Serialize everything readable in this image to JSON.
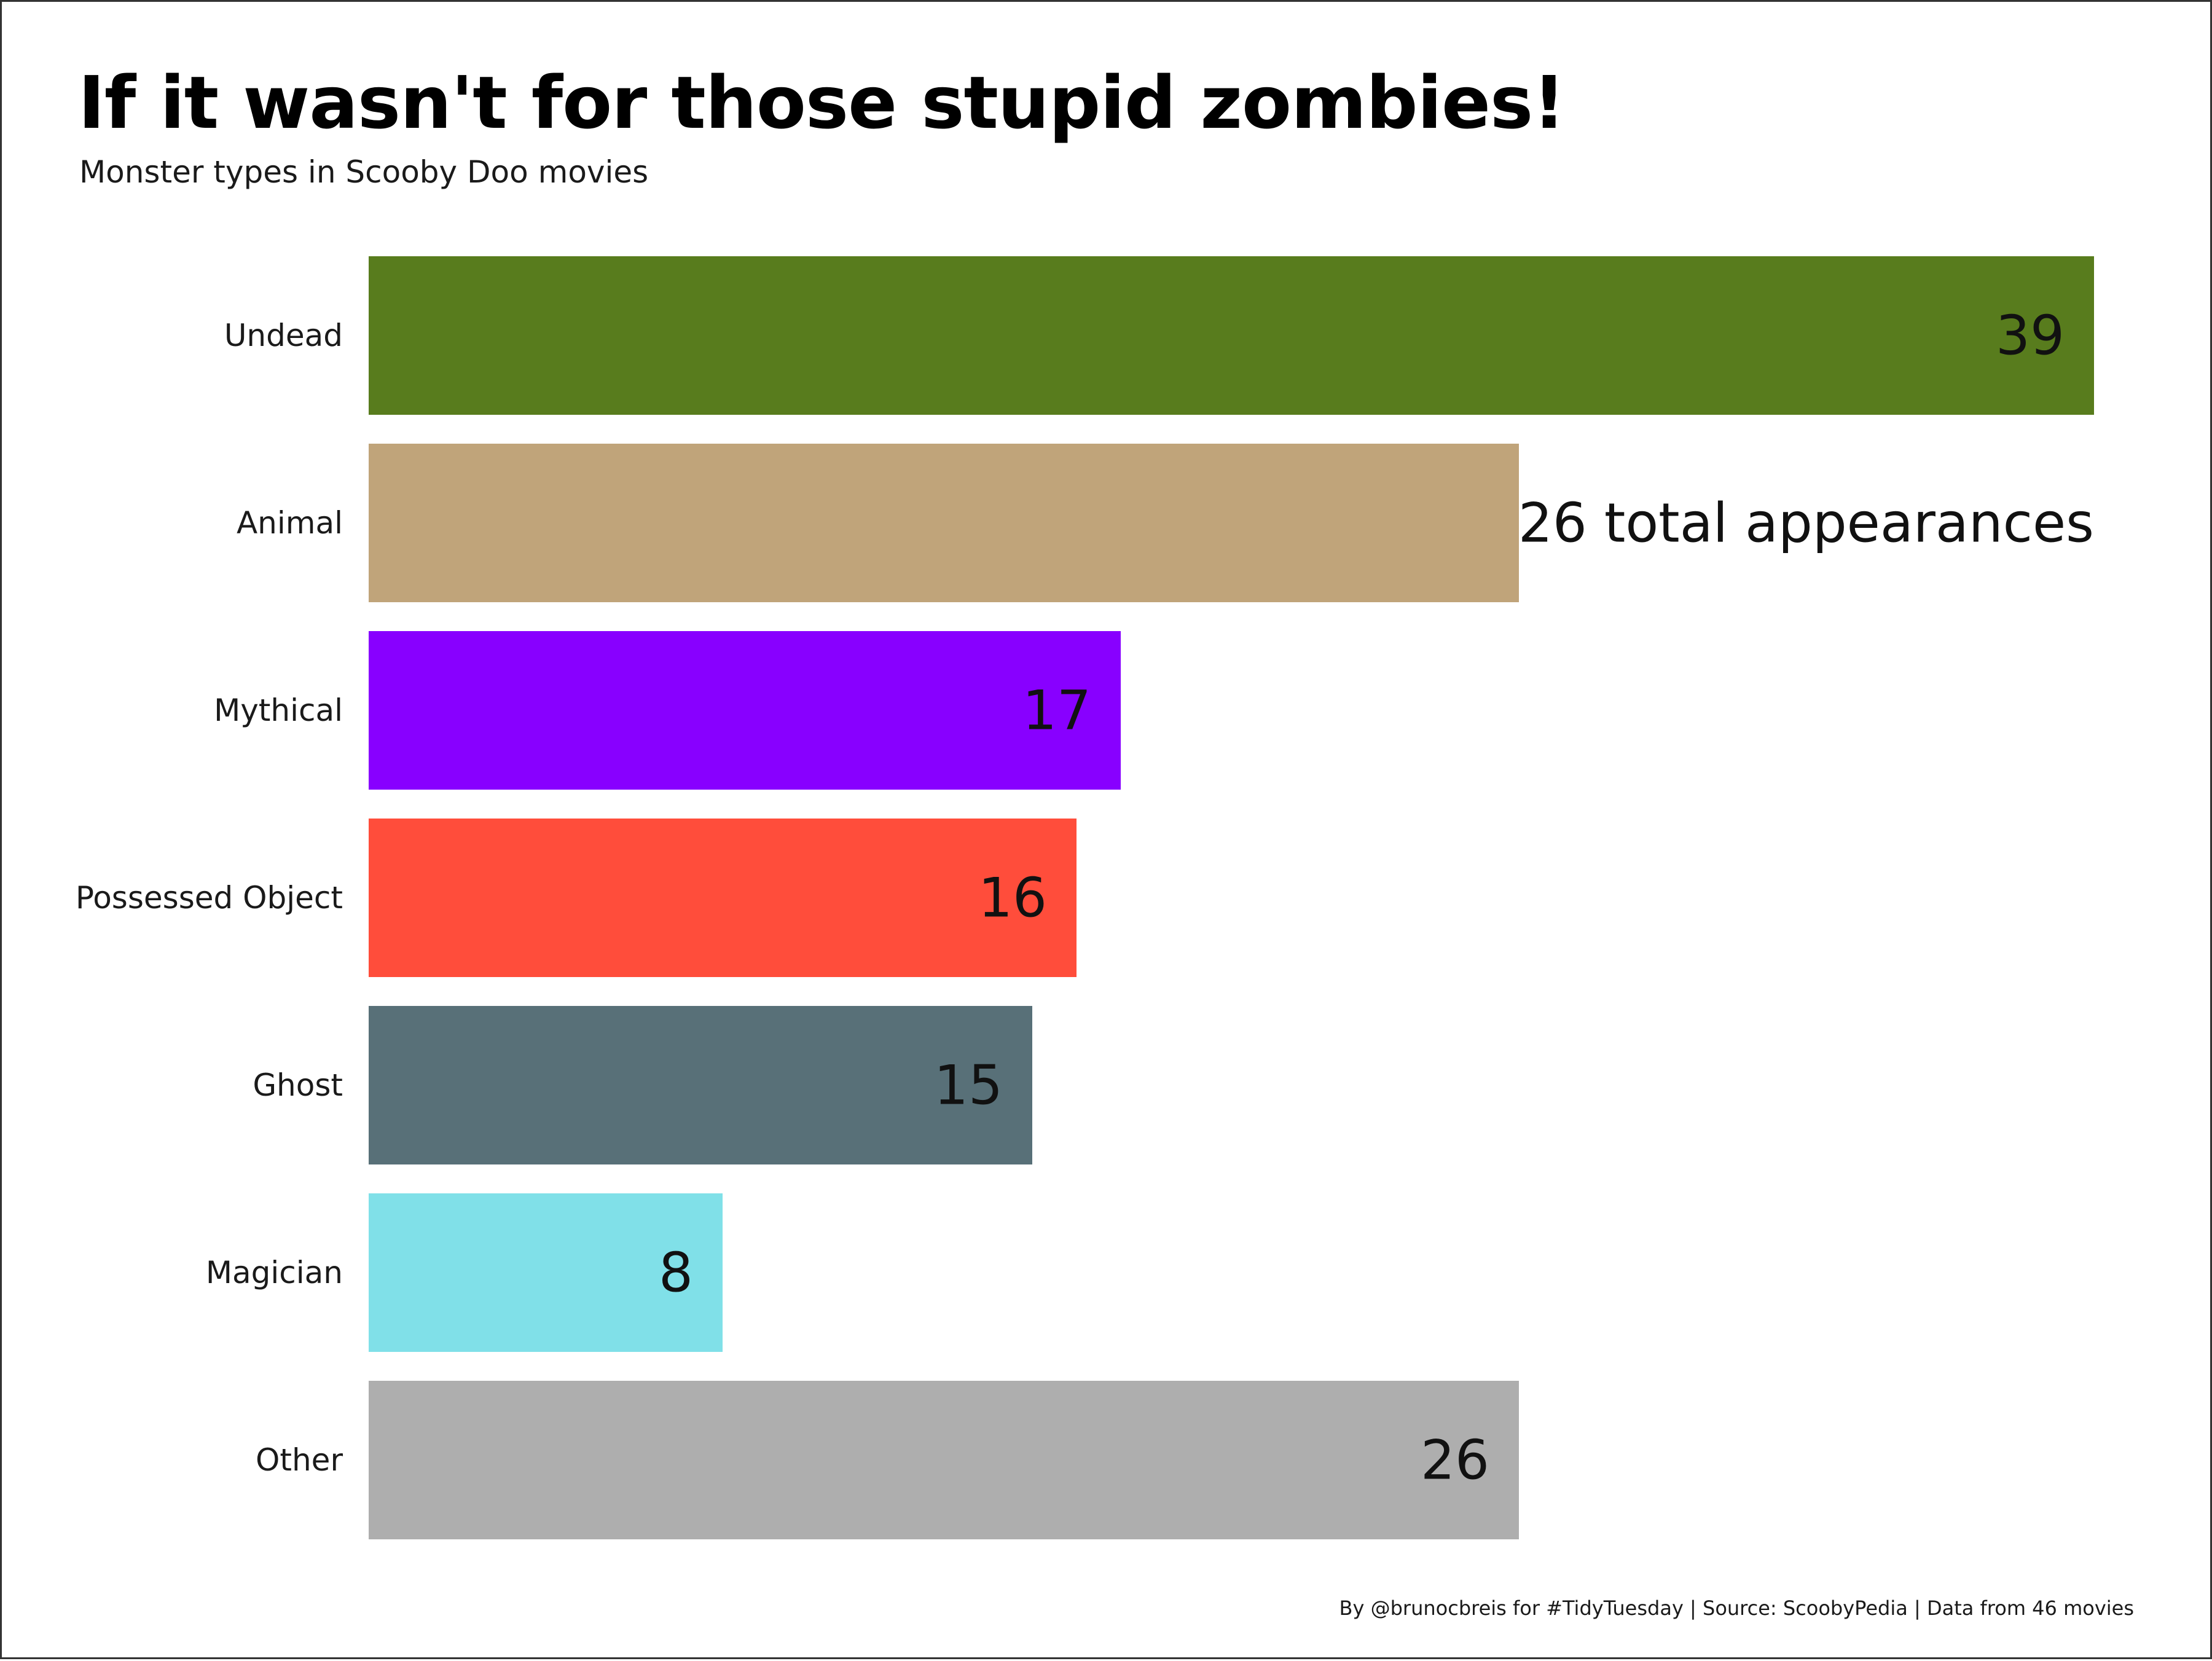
{
  "title": "If it wasn't for those stupid zombies!",
  "subtitle": "Monster types in Scooby Doo movies",
  "caption": "By @brunocbreis for #TidyTuesday | Source: ScoobyPedia | Data from 46 movies",
  "chart_data": {
    "type": "bar",
    "orientation": "horizontal",
    "categories": [
      "Undead",
      "Animal",
      "Mythical",
      "Possessed Object",
      "Ghost",
      "Magician",
      "Other"
    ],
    "values": [
      39,
      26,
      17,
      16,
      15,
      8,
      26
    ],
    "data_labels": [
      "39",
      "26 total appearances",
      "17",
      "16",
      "15",
      "8",
      "26"
    ],
    "colors": [
      "#587c1d",
      "#c0a47a",
      "#8800ff",
      "#ff4d3b",
      "#587078",
      "#80e0e8",
      "#aeaeae"
    ],
    "xlim": [
      0,
      39
    ],
    "grid": false,
    "legend": "none"
  }
}
